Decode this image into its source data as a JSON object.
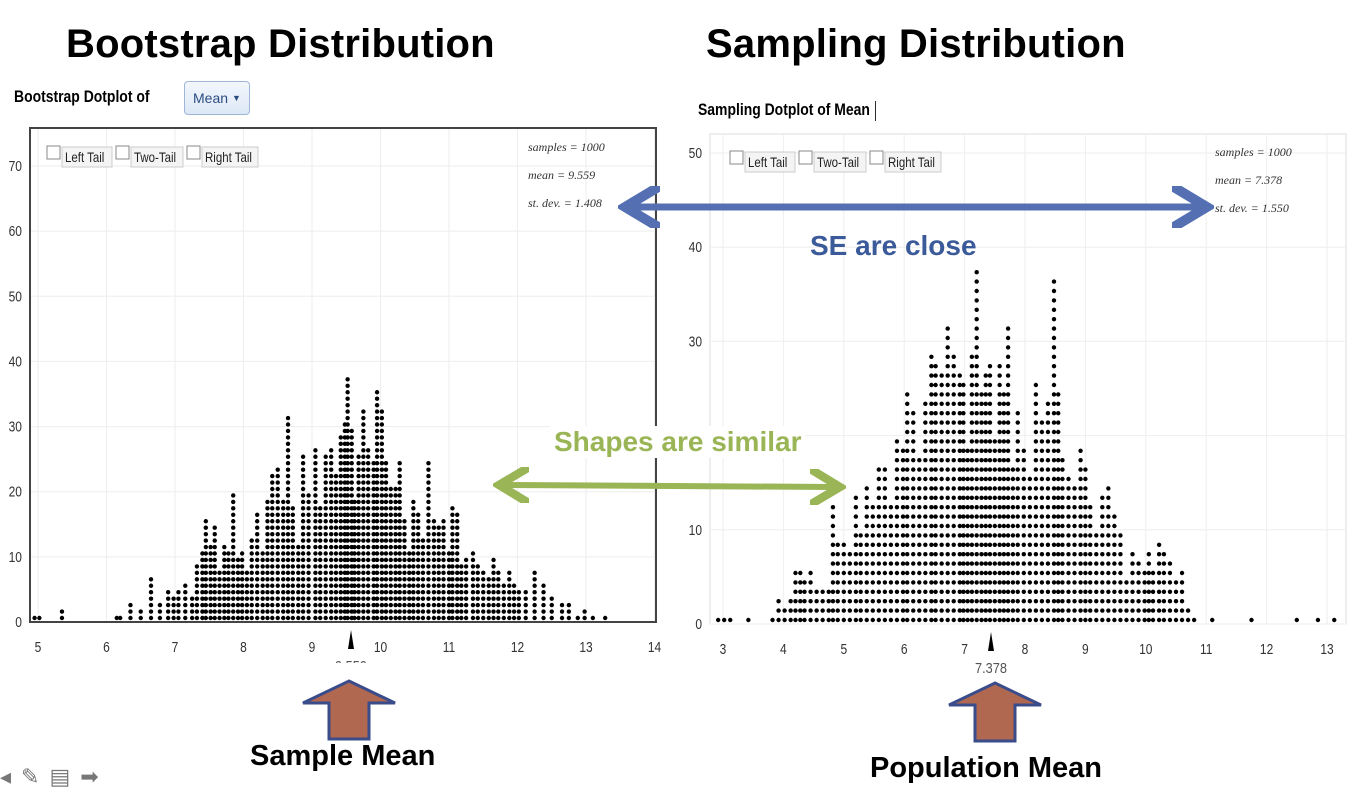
{
  "titles": {
    "left": "Bootstrap Distribution",
    "right": "Sampling Distribution"
  },
  "left_panel": {
    "subtitle": "Bootstrap Dotplot of",
    "select_value": "Mean",
    "checkboxes": [
      "Left Tail",
      "Two-Tail",
      "Right Tail"
    ],
    "stats": [
      "samples = 1000",
      "mean = 9.559",
      "st. dev. = 1.408"
    ],
    "marker_label": "9.559"
  },
  "right_panel": {
    "subtitle": "Sampling Dotplot of Mean",
    "checkboxes": [
      "Left Tail",
      "Two-Tail",
      "Right Tail"
    ],
    "stats": [
      "samples = 1000",
      "mean = 7.378",
      "st. dev. = 1.550"
    ],
    "marker_label": "7.378"
  },
  "annotations": {
    "se": "SE are close",
    "shape": "Shapes are similar"
  },
  "labels": {
    "sample_mean": "Sample Mean",
    "population_mean": "Population Mean"
  },
  "colors": {
    "se_arrow": "#5470b3",
    "shape_arrow": "#9ab555",
    "up_arrow_fill": "#b06850",
    "up_arrow_stroke": "#3a4d8a"
  },
  "chart_data": [
    {
      "type": "scatter",
      "title": "Bootstrap Dotplot of Mean",
      "xlim": [
        4.9,
        14
      ],
      "ylim": [
        0,
        75
      ],
      "x_ticks": [
        5,
        6,
        7,
        8,
        9,
        10,
        11,
        12,
        13,
        14
      ],
      "y_ticks": [
        0,
        10,
        20,
        30,
        40,
        50,
        60,
        70
      ],
      "marker": 9.559,
      "stacks": [
        [
          4.95,
          1
        ],
        [
          5.02,
          1
        ],
        [
          5.35,
          2
        ],
        [
          6.15,
          1
        ],
        [
          6.2,
          1
        ],
        [
          6.35,
          3
        ],
        [
          6.5,
          2
        ],
        [
          6.65,
          7
        ],
        [
          6.78,
          3
        ],
        [
          6.9,
          5
        ],
        [
          6.98,
          4
        ],
        [
          7.05,
          5
        ],
        [
          7.15,
          6
        ],
        [
          7.25,
          4
        ],
        [
          7.32,
          9
        ],
        [
          7.4,
          11
        ],
        [
          7.45,
          16
        ],
        [
          7.52,
          12
        ],
        [
          7.58,
          15
        ],
        [
          7.65,
          8
        ],
        [
          7.72,
          12
        ],
        [
          7.78,
          11
        ],
        [
          7.85,
          20
        ],
        [
          7.92,
          10
        ],
        [
          7.98,
          11
        ],
        [
          8.05,
          8
        ],
        [
          8.12,
          13
        ],
        [
          8.2,
          17
        ],
        [
          8.28,
          11
        ],
        [
          8.35,
          19
        ],
        [
          8.42,
          23
        ],
        [
          8.5,
          24
        ],
        [
          8.58,
          19
        ],
        [
          8.65,
          32
        ],
        [
          8.72,
          18
        ],
        [
          8.8,
          12
        ],
        [
          8.87,
          26
        ],
        [
          8.95,
          20
        ],
        [
          9.05,
          27
        ],
        [
          9.12,
          18
        ],
        [
          9.2,
          26
        ],
        [
          9.28,
          27
        ],
        [
          9.35,
          23
        ],
        [
          9.42,
          29
        ],
        [
          9.48,
          31
        ],
        [
          9.52,
          38
        ],
        [
          9.58,
          30
        ],
        [
          9.62,
          19
        ],
        [
          9.68,
          26
        ],
        [
          9.75,
          33
        ],
        [
          9.82,
          27
        ],
        [
          9.9,
          25
        ],
        [
          9.95,
          36
        ],
        [
          10.02,
          33
        ],
        [
          10.08,
          25
        ],
        [
          10.15,
          21
        ],
        [
          10.22,
          21
        ],
        [
          10.28,
          25
        ],
        [
          10.35,
          16
        ],
        [
          10.42,
          11
        ],
        [
          10.48,
          19
        ],
        [
          10.55,
          17
        ],
        [
          10.62,
          13
        ],
        [
          10.7,
          25
        ],
        [
          10.78,
          16
        ],
        [
          10.85,
          15
        ],
        [
          10.92,
          16
        ],
        [
          11.0,
          11
        ],
        [
          11.05,
          18
        ],
        [
          11.12,
          17
        ],
        [
          11.18,
          9
        ],
        [
          11.25,
          10
        ],
        [
          11.35,
          11
        ],
        [
          11.42,
          9
        ],
        [
          11.5,
          8
        ],
        [
          11.58,
          7
        ],
        [
          11.65,
          10
        ],
        [
          11.72,
          8
        ],
        [
          11.8,
          6
        ],
        [
          11.88,
          8
        ],
        [
          11.95,
          6
        ],
        [
          12.02,
          5
        ],
        [
          12.12,
          5
        ],
        [
          12.25,
          8
        ],
        [
          12.38,
          6
        ],
        [
          12.5,
          4
        ],
        [
          12.65,
          3
        ],
        [
          12.75,
          3
        ],
        [
          12.88,
          1
        ],
        [
          12.98,
          2
        ],
        [
          13.1,
          1
        ],
        [
          13.28,
          1
        ]
      ],
      "stats": {
        "samples": 1000,
        "mean": 9.559,
        "st_dev": 1.408
      }
    },
    {
      "type": "scatter",
      "title": "Sampling Dotplot of Mean",
      "xlim": [
        2.85,
        13.15
      ],
      "ylim": [
        0,
        52
      ],
      "x_ticks": [
        3,
        4,
        5,
        6,
        7,
        8,
        9,
        10,
        11,
        12,
        13
      ],
      "y_ticks": [
        0,
        10,
        20,
        30,
        40,
        50
      ],
      "marker": 7.378,
      "stacks": [
        [
          2.92,
          1
        ],
        [
          3.02,
          1
        ],
        [
          3.12,
          1
        ],
        [
          3.42,
          1
        ],
        [
          3.82,
          1
        ],
        [
          3.92,
          3
        ],
        [
          4.02,
          2
        ],
        [
          4.12,
          3
        ],
        [
          4.2,
          6
        ],
        [
          4.28,
          6
        ],
        [
          4.35,
          5
        ],
        [
          4.45,
          6
        ],
        [
          4.55,
          4
        ],
        [
          4.65,
          4
        ],
        [
          4.75,
          4
        ],
        [
          4.82,
          13
        ],
        [
          4.9,
          9
        ],
        [
          5.0,
          9
        ],
        [
          5.1,
          8
        ],
        [
          5.2,
          14
        ],
        [
          5.28,
          10
        ],
        [
          5.38,
          15
        ],
        [
          5.48,
          13
        ],
        [
          5.58,
          17
        ],
        [
          5.68,
          17
        ],
        [
          5.78,
          13
        ],
        [
          5.88,
          20
        ],
        [
          5.98,
          19
        ],
        [
          6.05,
          25
        ],
        [
          6.15,
          23
        ],
        [
          6.25,
          18
        ],
        [
          6.35,
          24
        ],
        [
          6.45,
          29
        ],
        [
          6.52,
          28
        ],
        [
          6.62,
          27
        ],
        [
          6.72,
          32
        ],
        [
          6.82,
          29
        ],
        [
          6.92,
          27
        ],
        [
          6.98,
          26
        ],
        [
          7.05,
          19
        ],
        [
          7.12,
          29
        ],
        [
          7.2,
          38
        ],
        [
          7.28,
          25
        ],
        [
          7.35,
          27
        ],
        [
          7.42,
          28
        ],
        [
          7.5,
          20
        ],
        [
          7.58,
          28
        ],
        [
          7.65,
          25
        ],
        [
          7.72,
          32
        ],
        [
          7.8,
          17
        ],
        [
          7.88,
          23
        ],
        [
          7.98,
          19
        ],
        [
          8.08,
          16
        ],
        [
          8.18,
          26
        ],
        [
          8.28,
          22
        ],
        [
          8.38,
          24
        ],
        [
          8.48,
          37
        ],
        [
          8.55,
          25
        ],
        [
          8.62,
          18
        ],
        [
          8.72,
          16
        ],
        [
          8.82,
          15
        ],
        [
          8.92,
          19
        ],
        [
          9.0,
          17
        ],
        [
          9.08,
          13
        ],
        [
          9.18,
          10
        ],
        [
          9.28,
          14
        ],
        [
          9.38,
          15
        ],
        [
          9.48,
          12
        ],
        [
          9.58,
          10
        ],
        [
          9.68,
          5
        ],
        [
          9.78,
          8
        ],
        [
          9.88,
          7
        ],
        [
          9.98,
          6
        ],
        [
          10.05,
          8
        ],
        [
          10.12,
          6
        ],
        [
          10.22,
          9
        ],
        [
          10.3,
          8
        ],
        [
          10.4,
          7
        ],
        [
          10.5,
          5
        ],
        [
          10.6,
          6
        ],
        [
          10.7,
          2
        ],
        [
          10.8,
          1
        ],
        [
          11.1,
          1
        ],
        [
          11.75,
          1
        ],
        [
          12.5,
          1
        ],
        [
          12.85,
          1
        ],
        [
          13.12,
          1
        ]
      ],
      "stats": {
        "samples": 1000,
        "mean": 7.378,
        "st_dev": 1.55
      }
    }
  ]
}
